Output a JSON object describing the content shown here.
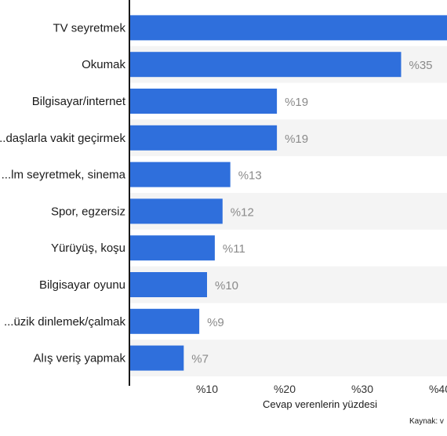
{
  "chart_data": {
    "type": "bar",
    "orientation": "horizontal",
    "categories": [
      "TV seyretmek",
      "Okumak",
      "Bilgisayar/internet",
      "...daşlarla vakit geçirmek",
      "...lm seyretmek, sinema",
      "Spor, egzersiz",
      "Yürüyüş, koşu",
      "Bilgisayar oyunu",
      "...üzik dinlemek/çalmak",
      "Alış veriş yapmak"
    ],
    "values": [
      42,
      35,
      19,
      19,
      13,
      12,
      11,
      10,
      9,
      7
    ],
    "value_labels": [
      "",
      "%35",
      "%19",
      "%19",
      "%13",
      "%12",
      "%11",
      "%10",
      "%9",
      "%7"
    ],
    "xlabel": "Cevap verenlerin yüzdesi",
    "xticks": [
      {
        "value": 10,
        "label": "%10"
      },
      {
        "value": 20,
        "label": "%20"
      },
      {
        "value": 30,
        "label": "%30"
      },
      {
        "value": 40,
        "label": "%40"
      }
    ],
    "xlim": [
      0,
      42
    ],
    "grid": false,
    "source": "Kaynak: v",
    "colors": {
      "bar": "#2f6fdc",
      "band": "#f4f4f4",
      "axis": "#1a1a1a"
    }
  }
}
